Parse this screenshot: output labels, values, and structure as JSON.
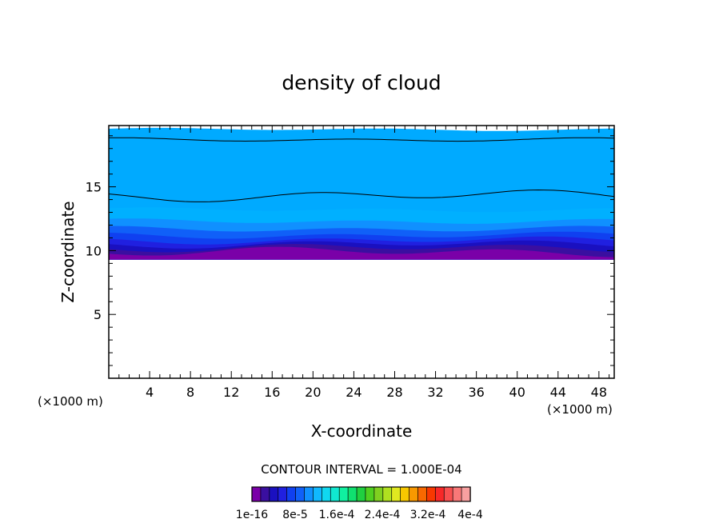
{
  "chart_data": {
    "type": "heatmap",
    "title": "density of cloud",
    "xlabel": "X-coordinate",
    "ylabel": "Z-coordinate",
    "x_unit": "(×1000 m)",
    "x_unit_right": "(×1000 m)",
    "xlim": [
      0,
      49.5
    ],
    "ylim": [
      0,
      19.8
    ],
    "x_ticks": [
      4,
      8,
      12,
      16,
      20,
      24,
      28,
      32,
      36,
      40,
      44,
      48
    ],
    "y_ticks": [
      5,
      10,
      15
    ],
    "contour_interval_text": "CONTOUR INTERVAL = 1.000E-04",
    "colorbar_labels": [
      "1e-16",
      "8e-5",
      "1.6e-4",
      "2.4e-4",
      "3.2e-4",
      "4e-4"
    ],
    "colorbar_colors": [
      "#7a00a8",
      "#3a0fa0",
      "#1a10c0",
      "#2020e0",
      "#1040f0",
      "#1060f8",
      "#1090ff",
      "#10b8ff",
      "#10d8f0",
      "#10e8d0",
      "#10f0a0",
      "#10e070",
      "#20d040",
      "#50d020",
      "#80d020",
      "#b0e020",
      "#e0e820",
      "#f8c800",
      "#f89800",
      "#f86800",
      "#f83800",
      "#f82828",
      "#f85050",
      "#f87878",
      "#f8a0a0"
    ],
    "cloud_base_z": 9.3,
    "cloud_top_z": 19.5,
    "band_tops_z": [
      9.9,
      10.2,
      10.5,
      10.8,
      11.2,
      11.7,
      12.3,
      13.2,
      19.3
    ],
    "band_colors": [
      "#7a00a8",
      "#3a0fa0",
      "#1a10c0",
      "#2020e0",
      "#1040f0",
      "#1060f8",
      "#1090ff",
      "#00b0ff"
    ],
    "contour_lines_z": [
      18.7,
      14.3
    ],
    "colors": {
      "top_band": "#00aaff",
      "background": "#ffffff",
      "contour_line": "#000000"
    }
  }
}
